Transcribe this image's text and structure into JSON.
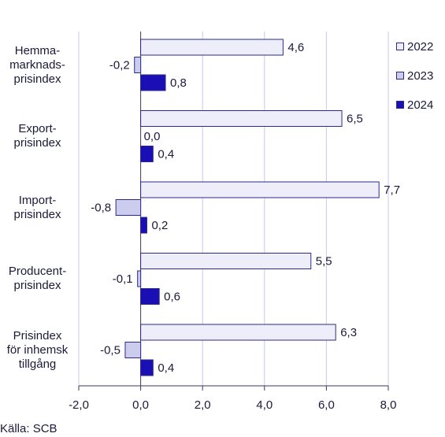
{
  "chart_data": {
    "type": "bar",
    "orientation": "horizontal",
    "categories": [
      [
        "Hemma-",
        "marknads-",
        "prisindex"
      ],
      [
        "Export-",
        "prisindex"
      ],
      [
        "Import-",
        "prisindex"
      ],
      [
        "Producent-",
        "prisindex"
      ],
      [
        "Prisindex",
        "för inhemsk",
        "tillgång"
      ]
    ],
    "series": [
      {
        "name": "2022",
        "values": [
          4.6,
          6.5,
          7.7,
          5.5,
          6.3
        ],
        "labels": [
          "4,6",
          "6,5",
          "7,7",
          "5,5",
          "6,3"
        ],
        "color": "#eeeefa"
      },
      {
        "name": "2023",
        "values": [
          -0.2,
          0.0,
          -0.8,
          -0.1,
          -0.5
        ],
        "labels": [
          "-0,2",
          "0,0",
          "-0,8",
          "-0,1",
          "-0,5"
        ],
        "color": "#ccccee"
      },
      {
        "name": "2024",
        "values": [
          0.8,
          0.4,
          0.2,
          0.6,
          0.4
        ],
        "labels": [
          "0,8",
          "0,4",
          "0,2",
          "0,6",
          "0,4"
        ],
        "color": "#1a0fb4"
      }
    ],
    "xlim": [
      -2.0,
      8.0
    ],
    "xticks": [
      -2,
      0,
      2,
      4,
      6,
      8
    ],
    "xtick_labels": [
      "-2,0",
      "0,0",
      "2,0",
      "4,0",
      "6,0",
      "8,0"
    ],
    "grid": true,
    "legend_position": "top-right"
  },
  "source": "Källa: SCB"
}
